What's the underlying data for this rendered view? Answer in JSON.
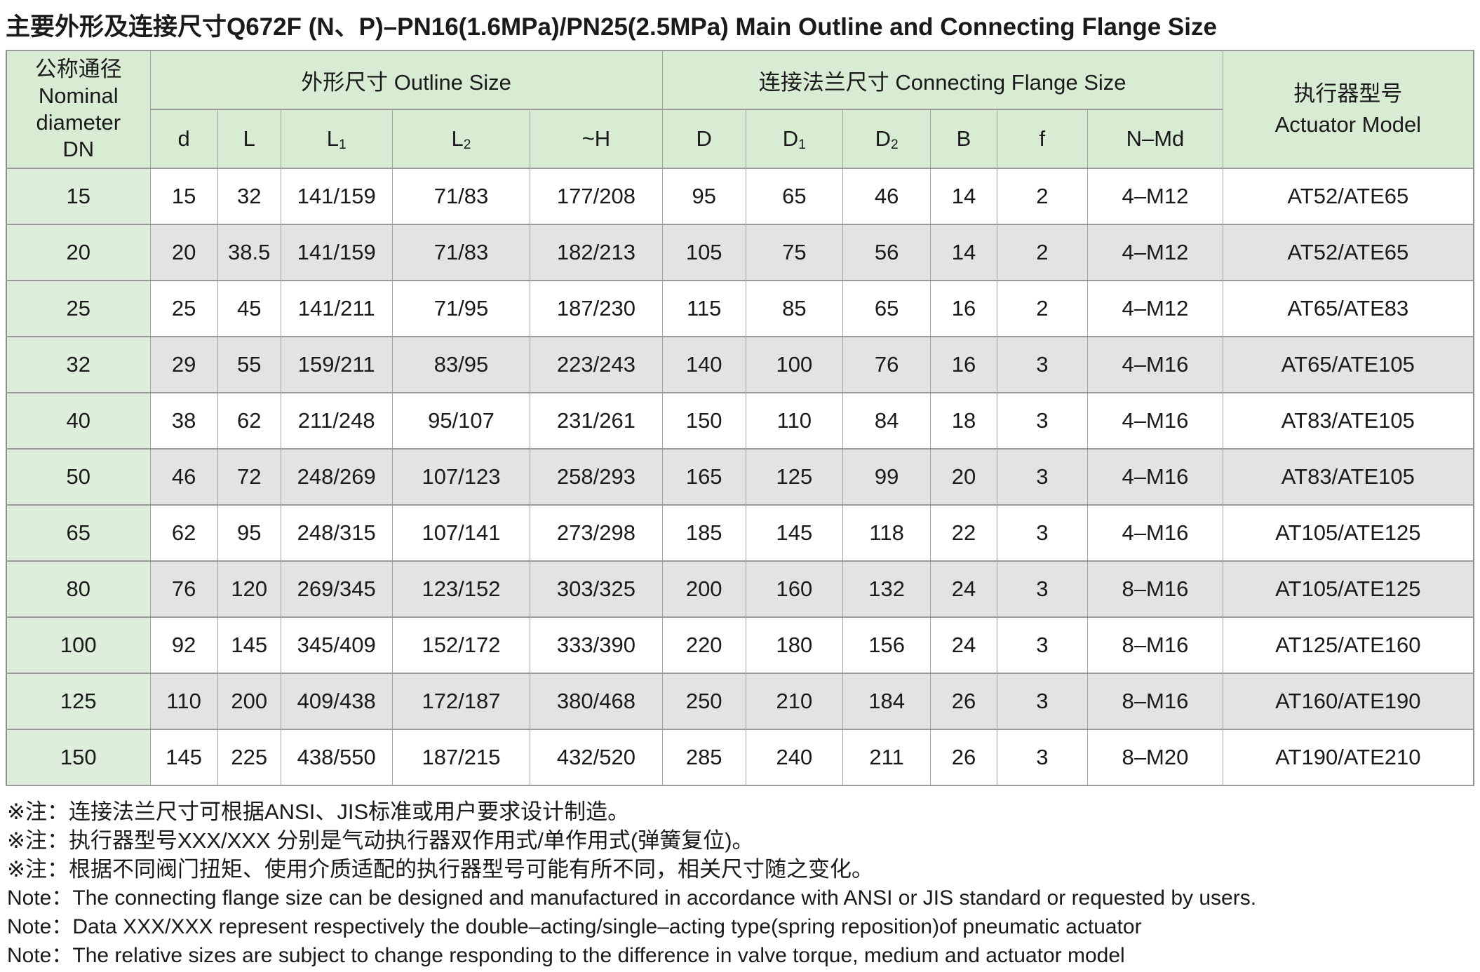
{
  "title": "主要外形及连接尺寸Q672F (N、P)–PN16(1.6MPa)/PN25(2.5MPa) Main Outline and Connecting Flange Size",
  "table": {
    "dn_header": [
      "公称通径",
      "Nominal",
      "diameter",
      "DN"
    ],
    "outline_group": "外形尺寸 Outline Size",
    "flange_group": "连接法兰尺寸 Connecting Flange Size",
    "actuator_header": [
      "执行器型号",
      "Actuator Model"
    ],
    "columns": [
      {
        "base": "d",
        "sub": ""
      },
      {
        "base": "L",
        "sub": ""
      },
      {
        "base": "L",
        "sub": "1"
      },
      {
        "base": "L",
        "sub": "2"
      },
      {
        "base": "~H",
        "sub": ""
      },
      {
        "base": "D",
        "sub": ""
      },
      {
        "base": "D",
        "sub": "1"
      },
      {
        "base": "D",
        "sub": "2"
      },
      {
        "base": "B",
        "sub": ""
      },
      {
        "base": "f",
        "sub": ""
      },
      {
        "base": "N–Md",
        "sub": ""
      }
    ],
    "rows": [
      {
        "dn": "15",
        "values": [
          "15",
          "32",
          "141/159",
          "71/83",
          "177/208",
          "95",
          "65",
          "46",
          "14",
          "2",
          "4–M12"
        ],
        "actuator": "AT52/ATE65"
      },
      {
        "dn": "20",
        "values": [
          "20",
          "38.5",
          "141/159",
          "71/83",
          "182/213",
          "105",
          "75",
          "56",
          "14",
          "2",
          "4–M12"
        ],
        "actuator": "AT52/ATE65"
      },
      {
        "dn": "25",
        "values": [
          "25",
          "45",
          "141/211",
          "71/95",
          "187/230",
          "115",
          "85",
          "65",
          "16",
          "2",
          "4–M12"
        ],
        "actuator": "AT65/ATE83"
      },
      {
        "dn": "32",
        "values": [
          "29",
          "55",
          "159/211",
          "83/95",
          "223/243",
          "140",
          "100",
          "76",
          "16",
          "3",
          "4–M16"
        ],
        "actuator": "AT65/ATE105"
      },
      {
        "dn": "40",
        "values": [
          "38",
          "62",
          "211/248",
          "95/107",
          "231/261",
          "150",
          "110",
          "84",
          "18",
          "3",
          "4–M16"
        ],
        "actuator": "AT83/ATE105"
      },
      {
        "dn": "50",
        "values": [
          "46",
          "72",
          "248/269",
          "107/123",
          "258/293",
          "165",
          "125",
          "99",
          "20",
          "3",
          "4–M16"
        ],
        "actuator": "AT83/ATE105"
      },
      {
        "dn": "65",
        "values": [
          "62",
          "95",
          "248/315",
          "107/141",
          "273/298",
          "185",
          "145",
          "118",
          "22",
          "3",
          "4–M16"
        ],
        "actuator": "AT105/ATE125"
      },
      {
        "dn": "80",
        "values": [
          "76",
          "120",
          "269/345",
          "123/152",
          "303/325",
          "200",
          "160",
          "132",
          "24",
          "3",
          "8–M16"
        ],
        "actuator": "AT105/ATE125"
      },
      {
        "dn": "100",
        "values": [
          "92",
          "145",
          "345/409",
          "152/172",
          "333/390",
          "220",
          "180",
          "156",
          "24",
          "3",
          "8–M16"
        ],
        "actuator": "AT125/ATE160"
      },
      {
        "dn": "125",
        "values": [
          "110",
          "200",
          "409/438",
          "172/187",
          "380/468",
          "250",
          "210",
          "184",
          "26",
          "3",
          "8–M16"
        ],
        "actuator": "AT160/ATE190"
      },
      {
        "dn": "150",
        "values": [
          "145",
          "225",
          "438/550",
          "187/215",
          "432/520",
          "285",
          "240",
          "211",
          "26",
          "3",
          "8–M20"
        ],
        "actuator": "AT190/ATE210"
      }
    ]
  },
  "notes": [
    "※注：连接法兰尺寸可根据ANSI、JIS标准或用户要求设计制造。",
    "※注：执行器型号XXX/XXX 分别是气动执行器双作用式/单作用式(弹簧复位)。",
    "※注：根据不同阀门扭矩、使用介质适配的执行器型号可能有所不同，相关尺寸随之变化。",
    "Note：The connecting flange size can be designed and manufactured in accordance with ANSI or JIS standard or requested by users.",
    "Note：Data XXX/XXX represent respectively the double–acting/single–acting type(spring reposition)of pneumatic actuator",
    "Note：The relative sizes are subject to change responding to the difference in valve torque, medium and actuator model"
  ],
  "colors": {
    "header_green": "#d8ebd3",
    "dn_column_green": "#ddeedb",
    "alt_row_gray": "#e3e3e3",
    "border_gray": "#9a9a9a",
    "text": "#1a1a1a"
  }
}
